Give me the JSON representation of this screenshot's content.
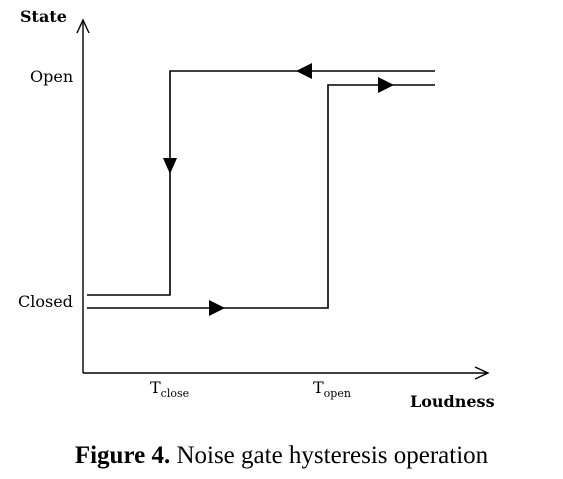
{
  "diagram": {
    "y_axis_label": "State",
    "x_axis_label": "Loudness",
    "state_open": "Open",
    "state_closed": "Closed",
    "threshold_close": {
      "main": "T",
      "sub": "close"
    },
    "threshold_open": {
      "main": "T",
      "sub": "open"
    }
  },
  "caption": {
    "label": "Figure 4.",
    "text": "Noise gate hysteresis operation"
  }
}
